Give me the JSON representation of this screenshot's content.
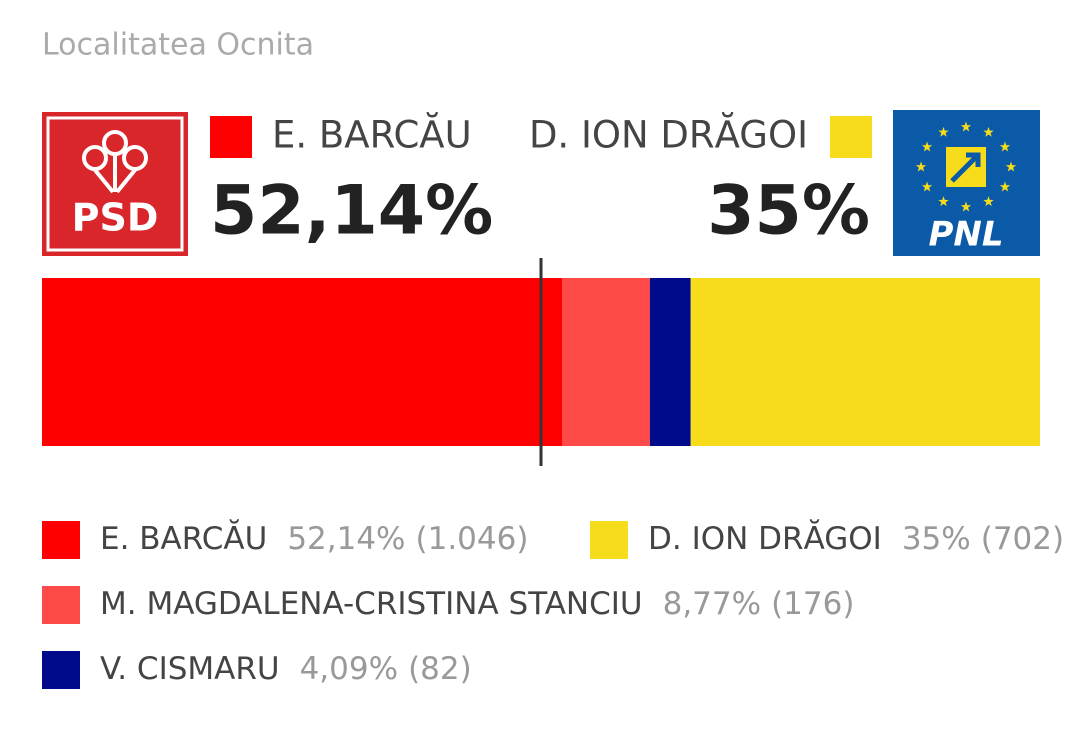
{
  "logos": {
    "left": "PSD",
    "right": "PNL"
  },
  "chart_data": {
    "type": "stacked-bar",
    "title": "Localitatea Ocnita",
    "xlim": [
      0,
      100
    ],
    "reference_line": 50,
    "series": [
      {
        "name": "E. BARCĂU",
        "color": "#fe0000",
        "values": [
          52.14
        ],
        "value_labels": [
          "52,14%"
        ],
        "votes": [
          1046
        ],
        "vote_labels": [
          "(1.046)"
        ]
      },
      {
        "name": "M. MAGDALENA-CRISTINA STANCIU",
        "color": "#ff4a4a",
        "values": [
          8.77
        ],
        "value_labels": [
          "8,77%"
        ],
        "votes": [
          176
        ],
        "vote_labels": [
          "(176)"
        ]
      },
      {
        "name": "V. CISMARU",
        "color": "#000b8c",
        "values": [
          4.09
        ],
        "value_labels": [
          "4,09%"
        ],
        "votes": [
          82
        ],
        "vote_labels": [
          "(82)"
        ]
      },
      {
        "name": "D. ION DRĂGOI",
        "color": "#f6dc1a",
        "values": [
          35
        ],
        "value_labels": [
          "35%"
        ],
        "votes": [
          702
        ],
        "vote_labels": [
          "(702)"
        ]
      }
    ]
  }
}
